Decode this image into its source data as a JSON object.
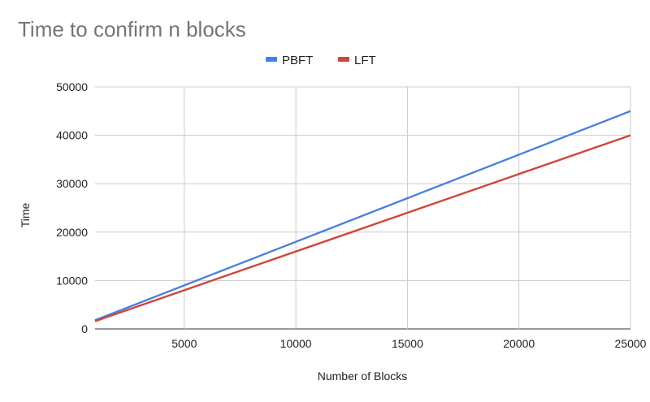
{
  "chart_data": {
    "type": "line",
    "title": "Time to confirm n blocks",
    "xlabel": "Number of Blocks",
    "ylabel": "Time",
    "xlim": [
      1000,
      25000
    ],
    "ylim": [
      0,
      50000
    ],
    "x_ticks": [
      5000,
      10000,
      15000,
      20000,
      25000
    ],
    "y_ticks": [
      0,
      10000,
      20000,
      30000,
      40000,
      50000
    ],
    "grid": true,
    "legend_position": "top-center",
    "series": [
      {
        "name": "PBFT",
        "color": "#4a7fe0",
        "x": [
          1000,
          25000
        ],
        "y": [
          1800,
          45000
        ]
      },
      {
        "name": "LFT",
        "color": "#d0463c",
        "x": [
          1000,
          25000
        ],
        "y": [
          1600,
          40000
        ]
      }
    ]
  }
}
